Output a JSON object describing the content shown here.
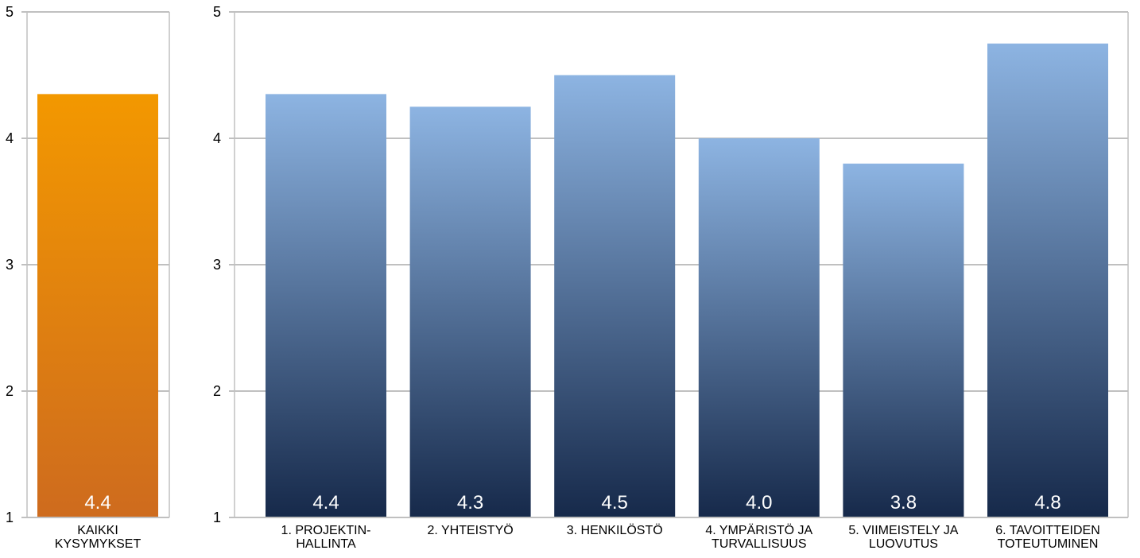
{
  "chart_data": [
    {
      "type": "bar",
      "categories": [
        "KAIKKI\nKYSYMYKSET"
      ],
      "values": [
        4.35
      ],
      "data_labels": [
        "4.4"
      ],
      "ylim": [
        1,
        5
      ],
      "yticks": [
        1,
        2,
        3,
        4,
        5
      ],
      "grid": true,
      "title": "",
      "xlabel": "",
      "ylabel": "",
      "colors": {
        "bar_top": "#f39800",
        "bar_bottom": "#ce6b1e",
        "label": "#ffffff"
      }
    },
    {
      "type": "bar",
      "categories": [
        "1. PROJEKTIN-\nHALLINTA",
        "2. YHTEISTYÖ",
        "3. HENKILÖSTÖ",
        "4. YMPÄRISTÖ JA\nTURVALLISUUS",
        "5. VIIMEISTELY JA\nLUOVUTUS",
        "6. TAVOITTEIDEN\nTOTEUTUMINEN"
      ],
      "values": [
        4.35,
        4.25,
        4.5,
        4.0,
        3.8,
        4.75
      ],
      "data_labels": [
        "4.4",
        "4.3",
        "4.5",
        "4.0",
        "3.8",
        "4.8"
      ],
      "ylim": [
        1,
        5
      ],
      "yticks": [
        1,
        2,
        3,
        4,
        5
      ],
      "grid": true,
      "title": "",
      "xlabel": "",
      "ylabel": "",
      "colors": {
        "bar_top": "#8db4e2",
        "bar_bottom": "#16294a",
        "label": "#ffffff"
      }
    }
  ],
  "colors": {
    "grid": "#c0c0c0",
    "axis_text": "#000000"
  }
}
